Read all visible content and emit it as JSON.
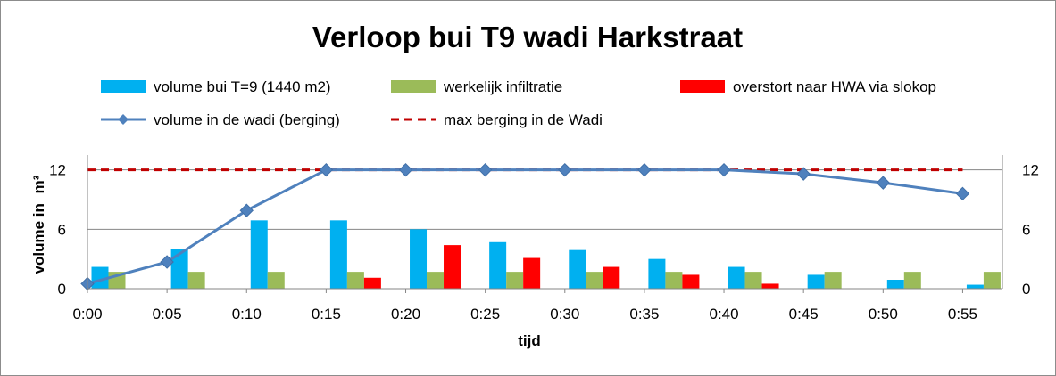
{
  "chart_data": {
    "type": "bar",
    "title": "Verloop bui T9 wadi Harkstraat",
    "xlabel": "tijd",
    "ylabel": "volume in",
    "ylabel_unit": "m³",
    "ylim": [
      0,
      13.5
    ],
    "yticks": [
      "0",
      "6",
      "12"
    ],
    "y2ticks": [
      "0",
      "6",
      "12"
    ],
    "grid": true,
    "legend_position": "top",
    "categories": [
      "0:00",
      "0:05",
      "0:10",
      "0:15",
      "0:20",
      "0:25",
      "0:30",
      "0:35",
      "0:40",
      "0:45",
      "0:50",
      "0:55"
    ],
    "series": [
      {
        "name": "volume bui T=9 (1440 m2)",
        "kind": "bar",
        "color": "#00b0f0",
        "values": [
          2.2,
          4.0,
          6.9,
          6.9,
          6.0,
          4.7,
          3.9,
          3.0,
          2.2,
          1.4,
          0.9,
          0.4
        ]
      },
      {
        "name": "werkelijk infiltratie",
        "kind": "bar",
        "color": "#9bbb59",
        "values": [
          1.7,
          1.7,
          1.7,
          1.7,
          1.7,
          1.7,
          1.7,
          1.7,
          1.7,
          1.7,
          1.7,
          1.7
        ]
      },
      {
        "name": "overstort naar HWA via slokop",
        "kind": "bar",
        "color": "#ff0000",
        "values": [
          0,
          0,
          0,
          1.1,
          4.4,
          3.1,
          2.2,
          1.4,
          0.5,
          0,
          0,
          0
        ]
      },
      {
        "name": "volume in de wadi (berging)",
        "kind": "line",
        "color": "#4f81bd",
        "marker": "diamond",
        "values": [
          0.5,
          2.7,
          7.9,
          12.0,
          12.0,
          12.0,
          12.0,
          12.0,
          12.0,
          11.6,
          10.7,
          9.6
        ]
      },
      {
        "name": "max berging in de Wadi",
        "kind": "dashed-line",
        "color": "#c00000",
        "values": [
          12,
          12,
          12,
          12,
          12,
          12,
          12,
          12,
          12,
          12,
          12,
          12
        ]
      }
    ]
  }
}
